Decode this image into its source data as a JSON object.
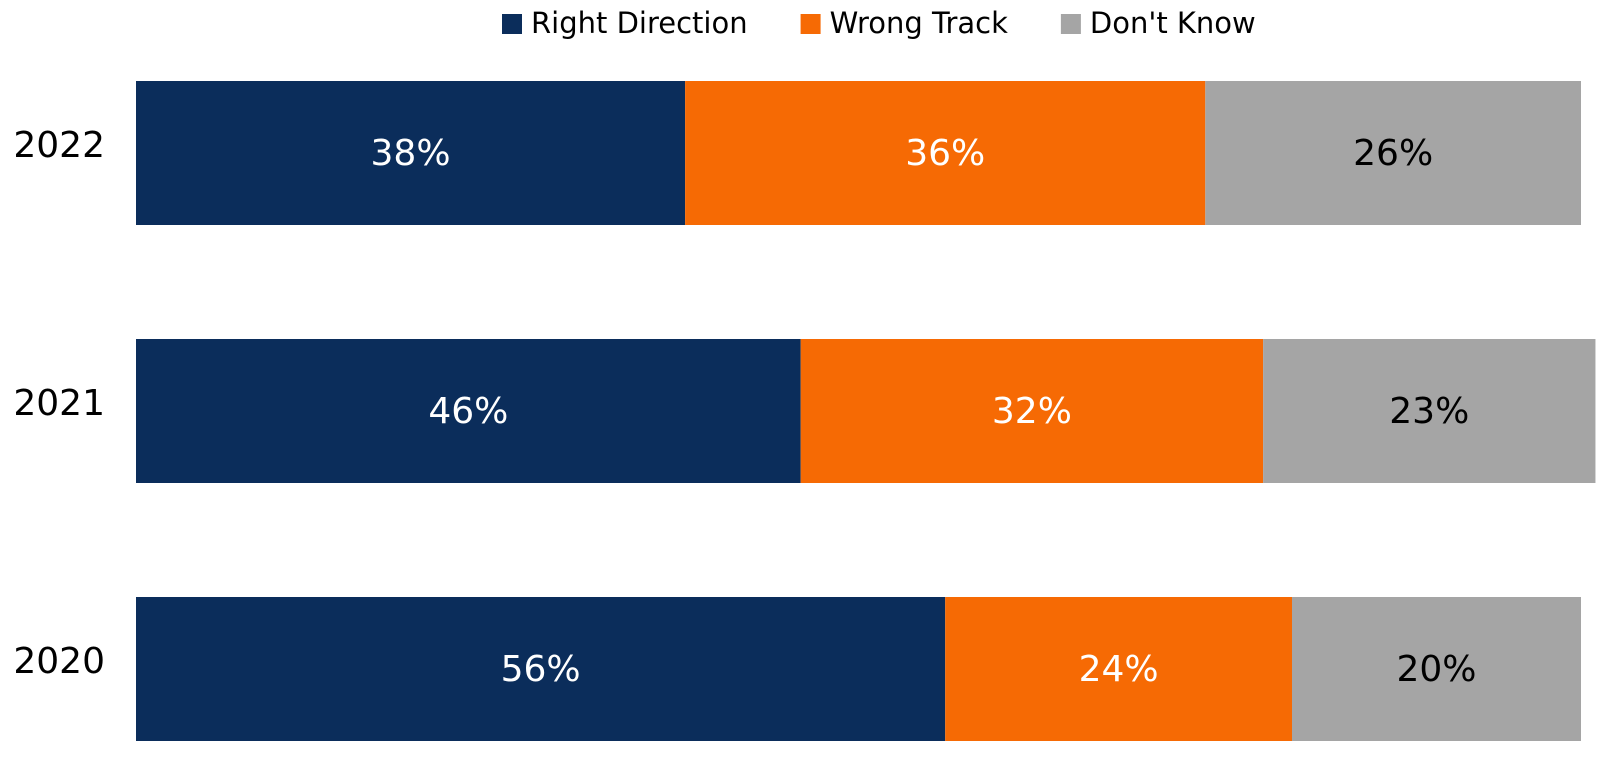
{
  "chart_data": {
    "type": "stacked_bar_horizontal",
    "categories": [
      "2022",
      "2021",
      "2020"
    ],
    "series": [
      {
        "name": "Right Direction",
        "color": "#0b2d5b",
        "label_color": "#ffffff",
        "values": [
          38,
          46,
          56
        ],
        "value_labels": [
          "38%",
          "46%",
          "56%"
        ]
      },
      {
        "name": "Wrong Track",
        "color": "#f66a04",
        "label_color": "#ffffff",
        "values": [
          36,
          32,
          24
        ],
        "value_labels": [
          "36%",
          "32%",
          "24%"
        ]
      },
      {
        "name": "Don't Know",
        "color": "#a5a5a5",
        "label_color": "#000000",
        "values": [
          26,
          23,
          20
        ],
        "value_labels": [
          "26%",
          "23%",
          "20%"
        ]
      }
    ],
    "xlim": [
      0,
      100
    ],
    "legend": "top"
  }
}
